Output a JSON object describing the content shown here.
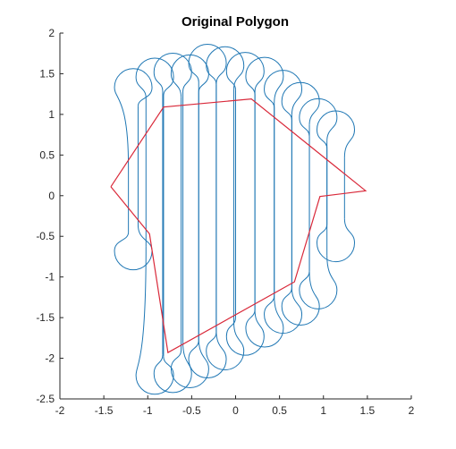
{
  "chart_data": {
    "type": "line",
    "title": "Original Polygon",
    "xlabel": "",
    "ylabel": "",
    "xlim": [
      -2,
      2
    ],
    "ylim": [
      -2.5,
      2
    ],
    "xticks": [
      -2,
      -1.5,
      -1,
      -0.5,
      0,
      0.5,
      1,
      1.5,
      2
    ],
    "yticks": [
      -2.5,
      -2,
      -1.5,
      -1,
      -0.5,
      0,
      0.5,
      1,
      1.5,
      2
    ],
    "xtick_labels": [
      "-2",
      "-1.5",
      "-1",
      "-0.5",
      "0",
      "0.5",
      "1",
      "1.5",
      "2"
    ],
    "ytick_labels": [
      "-2.5",
      "-2",
      "-1.5",
      "-1",
      "-0.5",
      "0",
      "0.5",
      "1",
      "1.5",
      "2"
    ],
    "grid": false,
    "box": false,
    "colors": {
      "polygon": "#d9293a",
      "strips": "#1f77b4",
      "axis": "#262626"
    },
    "polygon": {
      "x": [
        -1.42,
        -0.82,
        0.18,
        1.48,
        0.96,
        0.67,
        -0.77,
        -0.98,
        -1.42
      ],
      "y": [
        0.11,
        1.09,
        1.19,
        0.06,
        -0.01,
        -1.06,
        -1.93,
        -0.47,
        0.11
      ]
    },
    "strips": [
      {
        "x": [
          -1.22,
          -1.11
        ],
        "top": [
          0.35,
          1.1
        ],
        "bottom": [
          -0.45,
          -0.36
        ],
        "cap_top": "left",
        "cap_bottom": "left"
      },
      {
        "x": [
          -1.02,
          -0.82
        ],
        "top": [
          1.2,
          1.23
        ],
        "bottom": [
          -0.62,
          -1.98
        ],
        "cap_top": "left",
        "cap_bottom": "none"
      },
      {
        "x": [
          -0.83,
          -0.6
        ],
        "top": [
          1.29,
          1.28
        ],
        "bottom": [
          -1.96,
          -1.8
        ],
        "cap_top": "left",
        "cap_bottom": "left"
      },
      {
        "x": [
          -0.62,
          -0.42
        ],
        "top": [
          1.21,
          1.27
        ],
        "bottom": [
          -1.9,
          -1.75
        ],
        "cap_top": "left",
        "cap_bottom": "left"
      },
      {
        "x": [
          -0.42,
          -0.22
        ],
        "top": [
          1.4,
          1.37
        ],
        "bottom": [
          -1.78,
          -1.66
        ],
        "cap_top": "left",
        "cap_bottom": "left"
      },
      {
        "x": [
          -0.22,
          -0.02
        ],
        "top": [
          1.37,
          1.31
        ],
        "bottom": [
          -1.68,
          -1.56
        ],
        "cap_top": "left",
        "cap_bottom": "left"
      },
      {
        "x": [
          0.0,
          0.22
        ],
        "top": [
          1.3,
          1.28
        ],
        "bottom": [
          -1.5,
          -1.41
        ],
        "cap_top": "left",
        "cap_bottom": "left"
      },
      {
        "x": [
          0.22,
          0.44
        ],
        "top": [
          1.24,
          1.14
        ],
        "bottom": [
          -1.4,
          -1.23
        ],
        "cap_top": "left",
        "cap_bottom": "left"
      },
      {
        "x": [
          0.44,
          0.64
        ],
        "top": [
          1.08,
          0.99
        ],
        "bottom": [
          -1.23,
          -1.13
        ],
        "cap_top": "left",
        "cap_bottom": "left"
      },
      {
        "x": [
          0.64,
          0.84
        ],
        "top": [
          0.93,
          0.87
        ],
        "bottom": [
          -1.13,
          -0.93
        ],
        "cap_top": "left",
        "cap_bottom": "left"
      },
      {
        "x": [
          0.84,
          1.04
        ],
        "top": [
          0.73,
          0.67
        ],
        "bottom": [
          -0.93,
          -0.73
        ],
        "cap_top": "left",
        "cap_bottom": "left"
      },
      {
        "x": [
          1.04,
          1.24
        ],
        "top": [
          0.58,
          0.47
        ],
        "bottom": [
          -0.35,
          -0.28
        ],
        "cap_top": "left",
        "cap_bottom": "left"
      }
    ]
  }
}
